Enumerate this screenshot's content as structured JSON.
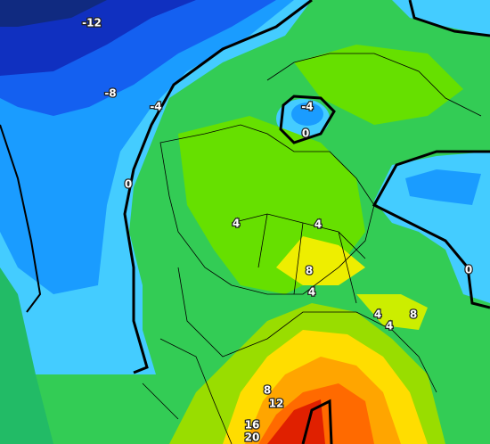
{
  "map": {
    "labels": [
      "-12",
      "-8",
      "-4",
      "-4",
      "0",
      "0",
      "4",
      "4",
      "8",
      "4",
      "4",
      "8",
      "4",
      "0",
      "8",
      "12",
      "16",
      "20"
    ]
  }
}
